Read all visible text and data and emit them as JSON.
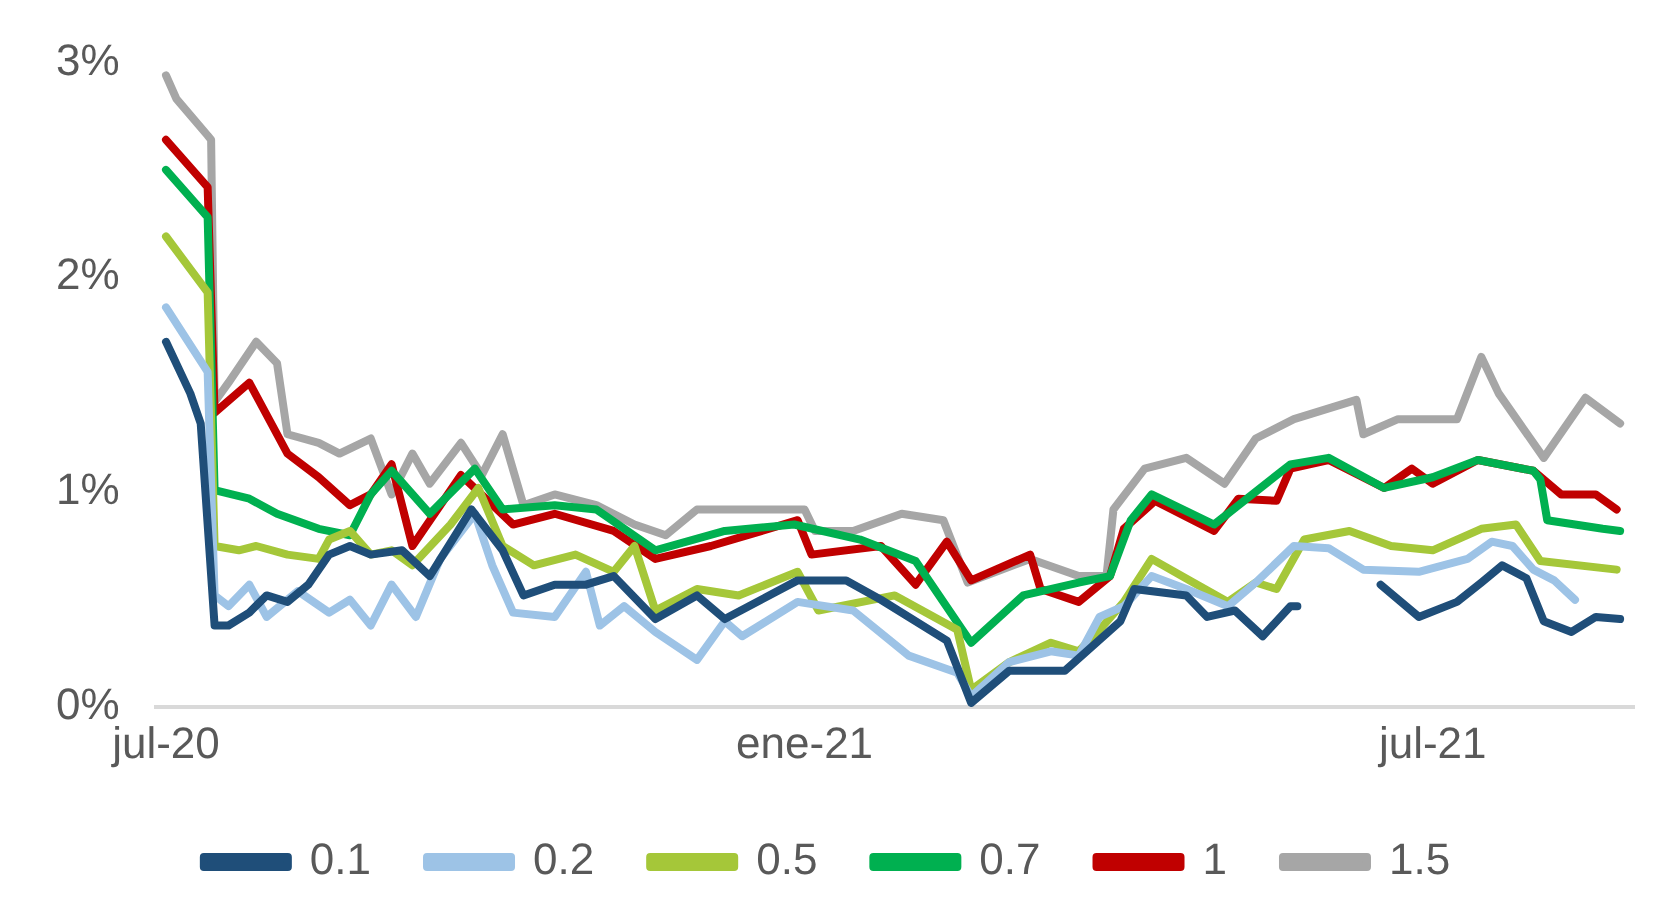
{
  "chart_data": {
    "type": "line",
    "xlim": [
      "2020-06-28",
      "2021-08-28"
    ],
    "xticks": [
      {
        "value": "2020-07-01",
        "label": "jul-20"
      },
      {
        "value": "2021-01-01",
        "label": "ene-21"
      },
      {
        "value": "2021-07-01",
        "label": "jul-21"
      }
    ],
    "ylim": [
      0,
      3
    ],
    "yticks": [
      {
        "value": 0,
        "label": "0%"
      },
      {
        "value": 1,
        "label": "1%"
      },
      {
        "value": 2,
        "label": "2%"
      },
      {
        "value": 3,
        "label": "3%"
      }
    ],
    "grid": false,
    "legend": "bottom",
    "marker": "none",
    "line_style": "solid",
    "series": [
      {
        "name": "0.1",
        "color": "#1f4e79",
        "x": [
          "2020-07-01",
          "2020-07-08",
          "2020-07-11",
          "2020-07-15",
          "2020-07-19",
          "2020-07-25",
          "2020-07-30",
          "2020-08-05",
          "2020-08-11",
          "2020-08-17",
          "2020-08-23",
          "2020-08-29",
          "2020-09-07",
          "2020-09-15",
          "2020-09-27",
          "2020-10-06",
          "2020-10-12",
          "2020-10-21",
          "2020-10-30",
          "2020-11-07",
          "2020-11-19",
          "2020-12-01",
          "2020-12-09",
          "2020-12-30",
          "2021-01-13",
          "2021-01-23",
          "2021-02-11",
          "2021-02-18",
          "2021-03-01",
          "2021-03-17",
          "2021-04-02",
          "2021-04-06",
          "2021-04-21",
          "2021-04-27",
          "2021-05-05",
          "2021-05-13",
          "2021-05-21",
          "2021-05-23",
          "2021-06-05",
          "2021-06-16",
          "2021-06-27",
          "2021-07-08",
          "2021-07-15",
          "2021-07-21",
          "2021-07-28",
          "2021-08-02",
          "2021-08-10",
          "2021-08-17",
          "2021-08-24"
        ],
        "values": [
          1.7,
          1.46,
          1.32,
          0.38,
          0.38,
          0.44,
          0.52,
          0.49,
          0.57,
          0.71,
          0.75,
          0.71,
          0.73,
          0.61,
          0.92,
          0.73,
          0.52,
          0.57,
          0.57,
          0.61,
          0.41,
          0.52,
          0.41,
          0.59,
          0.59,
          0.5,
          0.31,
          0.02,
          0.17,
          0.17,
          0.4,
          0.55,
          0.52,
          0.42,
          0.45,
          0.33,
          0.47,
          0.47,
          null,
          0.57,
          0.42,
          0.49,
          0.58,
          0.66,
          0.6,
          0.4,
          0.35,
          0.42,
          0.41
        ]
      },
      {
        "name": "0.2",
        "color": "#9dc3e6",
        "x": [
          "2020-07-01",
          "2020-07-13",
          "2020-07-15",
          "2020-07-19",
          "2020-07-25",
          "2020-07-30",
          "2020-08-08",
          "2020-08-17",
          "2020-08-23",
          "2020-08-29",
          "2020-09-04",
          "2020-09-11",
          "2020-09-18",
          "2020-09-28",
          "2020-10-03",
          "2020-10-09",
          "2020-10-21",
          "2020-10-30",
          "2020-11-03",
          "2020-11-10",
          "2020-11-19",
          "2020-12-01",
          "2020-12-09",
          "2020-12-14",
          "2020-12-30",
          "2021-01-15",
          "2021-01-31",
          "2021-02-14",
          "2021-02-18",
          "2021-03-01",
          "2021-03-13",
          "2021-03-21",
          "2021-03-27",
          "2021-04-03",
          "2021-04-11",
          "2021-04-21",
          "2021-05-03",
          "2021-05-11",
          "2021-05-22",
          "2021-06-01",
          "2021-06-11",
          "2021-06-27",
          "2021-07-11",
          "2021-07-18",
          "2021-07-24",
          "2021-07-30",
          "2021-08-05",
          "2021-08-11"
        ],
        "values": [
          1.86,
          1.56,
          0.52,
          0.47,
          0.57,
          0.42,
          0.54,
          0.44,
          0.5,
          0.38,
          0.57,
          0.42,
          0.69,
          0.9,
          0.66,
          0.44,
          0.42,
          0.63,
          0.38,
          0.47,
          0.35,
          0.22,
          0.4,
          0.33,
          0.49,
          0.45,
          0.24,
          0.16,
          0.05,
          0.21,
          0.26,
          0.24,
          0.42,
          0.47,
          0.61,
          0.55,
          0.47,
          0.58,
          0.75,
          0.74,
          0.64,
          0.63,
          0.69,
          0.77,
          0.75,
          0.64,
          0.59,
          0.5
        ]
      },
      {
        "name": "0.5",
        "color": "#a5c739",
        "x": [
          "2020-07-01",
          "2020-07-13",
          "2020-07-15",
          "2020-07-22",
          "2020-07-27",
          "2020-08-05",
          "2020-08-14",
          "2020-08-17",
          "2020-08-23",
          "2020-08-29",
          "2020-09-04",
          "2020-09-10",
          "2020-09-21",
          "2020-09-29",
          "2020-10-06",
          "2020-10-15",
          "2020-10-27",
          "2020-11-07",
          "2020-11-13",
          "2020-11-19",
          "2020-12-01",
          "2020-12-13",
          "2020-12-30",
          "2021-01-05",
          "2021-01-27",
          "2021-02-14",
          "2021-02-18",
          "2021-03-01",
          "2021-03-13",
          "2021-03-21",
          "2021-03-27",
          "2021-04-03",
          "2021-04-11",
          "2021-04-23",
          "2021-05-03",
          "2021-05-11",
          "2021-05-17",
          "2021-05-25",
          "2021-06-07",
          "2021-06-19",
          "2021-07-01",
          "2021-07-15",
          "2021-07-25",
          "2021-08-01",
          "2021-08-23"
        ],
        "values": [
          2.19,
          1.93,
          0.75,
          0.73,
          0.75,
          0.71,
          0.69,
          0.78,
          0.82,
          0.71,
          0.73,
          0.66,
          0.85,
          1.02,
          0.75,
          0.66,
          0.71,
          0.63,
          0.75,
          0.45,
          0.55,
          0.52,
          0.63,
          0.45,
          0.52,
          0.36,
          0.08,
          0.21,
          0.3,
          0.26,
          0.36,
          0.49,
          0.69,
          0.58,
          0.49,
          0.58,
          0.55,
          0.78,
          0.82,
          0.75,
          0.73,
          0.83,
          0.85,
          0.68,
          0.64
        ]
      },
      {
        "name": "0.7",
        "color": "#00b050",
        "x": [
          "2020-07-01",
          "2020-07-13",
          "2020-07-15",
          "2020-07-25",
          "2020-08-02",
          "2020-08-14",
          "2020-08-23",
          "2020-08-29",
          "2020-09-04",
          "2020-09-15",
          "2020-09-28",
          "2020-10-06",
          "2020-10-21",
          "2020-11-02",
          "2020-11-19",
          "2020-12-09",
          "2020-12-29",
          "2021-01-17",
          "2021-02-02",
          "2021-02-18",
          "2021-03-05",
          "2021-03-21",
          "2021-03-30",
          "2021-04-05",
          "2021-04-11",
          "2021-04-29",
          "2021-05-21",
          "2021-06-01",
          "2021-06-17",
          "2021-07-01",
          "2021-07-14",
          "2021-07-30",
          "2021-08-01",
          "2021-08-03",
          "2021-08-19",
          "2021-08-24"
        ],
        "values": [
          2.5,
          2.28,
          1.01,
          0.97,
          0.9,
          0.83,
          0.8,
          0.99,
          1.1,
          0.9,
          1.11,
          0.92,
          0.94,
          0.92,
          0.73,
          0.82,
          0.85,
          0.78,
          0.68,
          0.3,
          0.52,
          0.58,
          0.61,
          0.87,
          0.99,
          0.85,
          1.13,
          1.16,
          1.02,
          1.07,
          1.15,
          1.1,
          1.06,
          0.87,
          0.83,
          0.82
        ]
      },
      {
        "name": "1",
        "color": "#c00000",
        "x": [
          "2020-07-01",
          "2020-07-13",
          "2020-07-15",
          "2020-07-25",
          "2020-08-05",
          "2020-08-14",
          "2020-08-23",
          "2020-08-29",
          "2020-09-04",
          "2020-09-10",
          "2020-09-24",
          "2020-10-09",
          "2020-10-21",
          "2020-11-07",
          "2020-11-19",
          "2020-12-05",
          "2020-12-30",
          "2021-01-03",
          "2021-01-23",
          "2021-02-02",
          "2021-02-11",
          "2021-02-18",
          "2021-03-07",
          "2021-03-10",
          "2021-03-21",
          "2021-03-30",
          "2021-04-03",
          "2021-04-12",
          "2021-04-29",
          "2021-05-06",
          "2021-05-17",
          "2021-05-21",
          "2021-06-01",
          "2021-06-17",
          "2021-06-25",
          "2021-07-01",
          "2021-07-14",
          "2021-07-30",
          "2021-08-07",
          "2021-08-17",
          "2021-08-23"
        ],
        "values": [
          2.64,
          2.42,
          1.37,
          1.51,
          1.18,
          1.07,
          0.94,
          0.99,
          1.13,
          0.75,
          1.08,
          0.85,
          0.9,
          0.82,
          0.69,
          0.75,
          0.87,
          0.71,
          0.75,
          0.57,
          0.77,
          0.59,
          0.71,
          0.55,
          0.49,
          0.61,
          0.83,
          0.96,
          0.82,
          0.97,
          0.96,
          1.11,
          1.15,
          1.02,
          1.11,
          1.04,
          1.15,
          1.1,
          0.99,
          0.99,
          0.92
        ]
      },
      {
        "name": "1.5",
        "color": "#a6a6a6",
        "x": [
          "2020-07-01",
          "2020-07-04",
          "2020-07-13",
          "2020-07-14",
          "2020-07-15",
          "2020-07-19",
          "2020-07-27",
          "2020-08-02",
          "2020-08-05",
          "2020-08-14",
          "2020-08-20",
          "2020-08-29",
          "2020-09-04",
          "2020-09-10",
          "2020-09-15",
          "2020-09-24",
          "2020-09-30",
          "2020-10-06",
          "2020-10-12",
          "2020-10-21",
          "2020-11-02",
          "2020-11-13",
          "2020-11-22",
          "2020-12-01",
          "2020-12-14",
          "2021-01-01",
          "2021-01-04",
          "2021-01-15",
          "2021-01-29",
          "2021-02-10",
          "2021-02-17",
          "2021-03-07",
          "2021-03-21",
          "2021-03-29",
          "2021-03-31",
          "2021-04-09",
          "2021-04-21",
          "2021-05-02",
          "2021-05-11",
          "2021-05-22",
          "2021-06-09",
          "2021-06-11",
          "2021-06-21",
          "2021-07-08",
          "2021-07-15",
          "2021-07-20",
          "2021-08-02",
          "2021-08-14",
          "2021-08-24"
        ],
        "values": [
          2.94,
          2.83,
          2.66,
          2.64,
          1.42,
          1.51,
          1.7,
          1.6,
          1.27,
          1.23,
          1.18,
          1.25,
          0.99,
          1.18,
          1.04,
          1.23,
          1.08,
          1.27,
          0.94,
          0.99,
          0.94,
          0.85,
          0.8,
          0.92,
          0.92,
          0.92,
          0.82,
          0.82,
          0.9,
          0.87,
          0.58,
          0.69,
          0.61,
          0.61,
          0.92,
          1.11,
          1.16,
          1.04,
          1.25,
          1.34,
          1.43,
          1.27,
          1.34,
          1.34,
          1.63,
          1.46,
          1.16,
          1.44,
          1.32
        ]
      }
    ]
  }
}
